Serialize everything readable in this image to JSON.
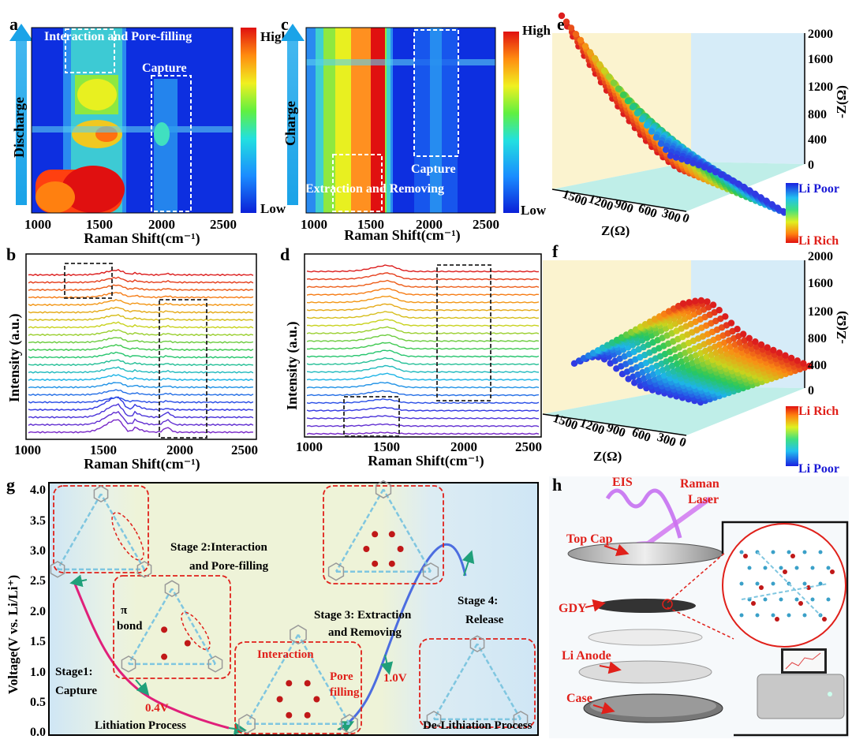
{
  "panels": {
    "a": {
      "label": "a",
      "y_title": "Discharge",
      "box1": "Interaction and Pore-filling",
      "box2": "Capture",
      "xlabel": "Raman Shift(cm⁻¹)",
      "ticks": [
        "1000",
        "1500",
        "2000",
        "2500"
      ],
      "cbar_high": "High",
      "cbar_low": "Low"
    },
    "c": {
      "label": "c",
      "y_title": "Charge",
      "box1": "Capture",
      "box2": "Extraction and Removing",
      "xlabel": "Raman Shift(cm⁻¹)",
      "ticks": [
        "1000",
        "1500",
        "2000",
        "2500"
      ],
      "cbar_high": "High",
      "cbar_low": "Low"
    },
    "b": {
      "label": "b",
      "ylabel": "Intensity (a.u.)",
      "xlabel": "Raman Shift(cm⁻¹)",
      "ticks": [
        "1000",
        "1500",
        "2000",
        "2500"
      ]
    },
    "d": {
      "label": "d",
      "ylabel": "Intensity (a.u.)",
      "xlabel": "Raman Shift(cm⁻¹)",
      "ticks": [
        "1000",
        "1500",
        "2000",
        "2500"
      ]
    },
    "e": {
      "label": "e",
      "zlabel": "-Z(Ω)",
      "xlabel": "Z(Ω)",
      "zticks": [
        "2000",
        "1600",
        "1200",
        "800",
        "400",
        "0"
      ],
      "xticks": [
        "1500",
        "1200",
        "900",
        "600",
        "300",
        "0"
      ],
      "legend_top": "Li Poor",
      "legend_bottom": "Li Rich"
    },
    "f": {
      "label": "f",
      "zlabel": "-Z(Ω)",
      "xlabel": "Z(Ω)",
      "zticks": [
        "2000",
        "1600",
        "1200",
        "800",
        "400",
        "0"
      ],
      "xticks": [
        "1500",
        "1200",
        "900",
        "600",
        "300",
        "0"
      ],
      "legend_top": "Li Rich",
      "legend_bottom": "Li Poor"
    },
    "g": {
      "label": "g",
      "ylabel": "Voltage(V vs. Li/Li⁺)",
      "yticks": [
        "4.0",
        "3.5",
        "3.0",
        "2.5",
        "2.0",
        "1.5",
        "1.0",
        "0.5",
        "0.0"
      ],
      "stage1": "Stage1:\nCapture",
      "stage2": "Stage 2:Interaction\nand Pore-filling",
      "stage3": "Stage 3: Extraction\nand Removing",
      "stage4": "Stage 4:\nRelease",
      "pi_bond": "π\nbond",
      "interaction": "Interaction",
      "pore_filling": "Pore\nfilling",
      "v04": "0.4V",
      "v10": "1.0V",
      "lith": "Lithiation Process",
      "delith": "De-Lithiation Process"
    },
    "h": {
      "label": "h",
      "eis": "EIS",
      "raman": "Raman\nLaser",
      "top_cap": "Top Cap",
      "gdy": "GDY",
      "li_anode": "Li Anode",
      "case": "Case"
    }
  },
  "colors": {
    "accent_red": "#e0201a",
    "arrow_blue": "#1aa3e8",
    "green_bg": "#eef3d8",
    "blue_bg": "#d6ecf8",
    "yellow_bg": "#fbf3cf",
    "label_blue": "#1a1ad6"
  }
}
